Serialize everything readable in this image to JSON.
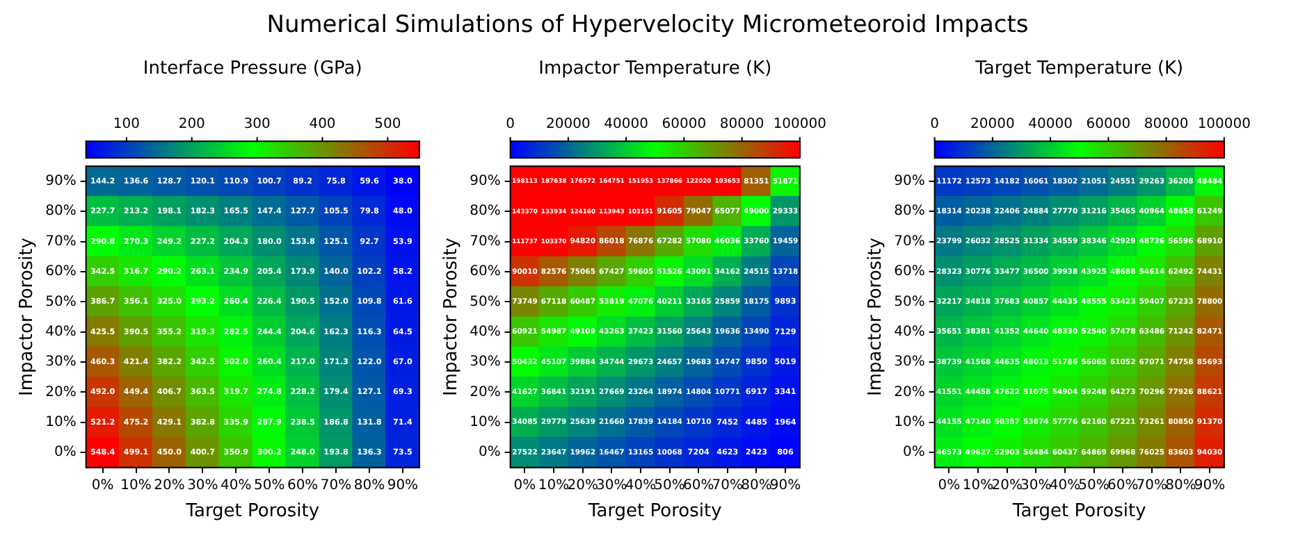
{
  "chart_data": [
    {
      "type": "heatmap",
      "clabel": "Interface Pressure (GPa)",
      "xlabel": "Target Porosity",
      "ylabel": "Impactor Porosity",
      "categories": [
        "0%",
        "10%",
        "20%",
        "30%",
        "40%",
        "50%",
        "60%",
        "70%",
        "80%",
        "90%"
      ],
      "y_categories": [
        "90%",
        "80%",
        "70%",
        "60%",
        "50%",
        "40%",
        "30%",
        "20%",
        "10%",
        "0%"
      ],
      "cells": [
        [
          144.2,
          136.6,
          128.7,
          120.1,
          110.9,
          100.7,
          89.2,
          75.8,
          59.6,
          38.0
        ],
        [
          227.7,
          213.2,
          198.1,
          182.3,
          165.5,
          147.4,
          127.7,
          105.5,
          79.8,
          48.0
        ],
        [
          290.8,
          270.3,
          249.2,
          227.2,
          204.3,
          180.0,
          153.8,
          125.1,
          92.7,
          53.9
        ],
        [
          342.5,
          316.7,
          290.2,
          263.1,
          234.9,
          205.4,
          173.9,
          140.0,
          102.2,
          58.2
        ],
        [
          386.7,
          356.1,
          325.0,
          293.2,
          260.4,
          226.4,
          190.5,
          152.0,
          109.8,
          61.6
        ],
        [
          425.5,
          390.5,
          355.2,
          319.3,
          282.5,
          244.4,
          204.6,
          162.3,
          116.3,
          64.5
        ],
        [
          460.3,
          421.4,
          382.2,
          342.5,
          302.0,
          260.4,
          217.0,
          171.3,
          122.0,
          67.0
        ],
        [
          492.0,
          449.4,
          406.7,
          363.5,
          319.7,
          274.8,
          228.2,
          179.4,
          127.1,
          69.3
        ],
        [
          521.2,
          475.2,
          429.1,
          382.8,
          335.9,
          287.9,
          238.5,
          186.8,
          131.8,
          71.4
        ],
        [
          548.4,
          499.1,
          450.0,
          400.7,
          350.9,
          300.2,
          248.0,
          193.8,
          136.3,
          73.5
        ]
      ],
      "cell_labels": [
        [
          "144.2",
          "136.6",
          "128.7",
          "120.1",
          "110.9",
          "100.7",
          "89.2",
          "75.8",
          "59.6",
          "38.0"
        ],
        [
          "227.7",
          "213.2",
          "198.1",
          "182.3",
          "165.5",
          "147.4",
          "127.7",
          "105.5",
          "79.8",
          "48.0"
        ],
        [
          "290.8",
          "270.3",
          "249.2",
          "227.2",
          "204.3",
          "180.0",
          "153.8",
          "125.1",
          "92.7",
          "53.9"
        ],
        [
          "342.5",
          "316.7",
          "290.2",
          "263.1",
          "234.9",
          "205.4",
          "173.9",
          "140.0",
          "102.2",
          "58.2"
        ],
        [
          "386.7",
          "356.1",
          "325.0",
          "293.2",
          "260.4",
          "226.4",
          "190.5",
          "152.0",
          "109.8",
          "61.6"
        ],
        [
          "425.5",
          "390.5",
          "355.2",
          "319.3",
          "282.5",
          "244.4",
          "204.6",
          "162.3",
          "116.3",
          "64.5"
        ],
        [
          "460.3",
          "421.4",
          "382.2",
          "342.5",
          "302.0",
          "260.4",
          "217.0",
          "171.3",
          "122.0",
          "67.0"
        ],
        [
          "492.0",
          "449.4",
          "406.7",
          "363.5",
          "319.7",
          "274.8",
          "228.2",
          "179.4",
          "127.1",
          "69.3"
        ],
        [
          "521.2",
          "475.2",
          "429.1",
          "382.8",
          "335.9",
          "287.9",
          "238.5",
          "186.8",
          "131.8",
          "71.4"
        ],
        [
          "548.4",
          "499.1",
          "450.0",
          "400.7",
          "350.9",
          "300.2",
          "248.0",
          "193.8",
          "136.3",
          "73.5"
        ]
      ],
      "clim": [
        38.0,
        548.4
      ],
      "cticks": [
        100,
        200,
        300,
        400,
        500
      ]
    },
    {
      "type": "heatmap",
      "title": "Numerical Simulations of Hypervelocity Micrometeoroid Impacts",
      "clabel": "Impactor Temperature (K)",
      "xlabel": "Target Porosity",
      "ylabel": "Impactor Porosity",
      "categories": [
        "0%",
        "10%",
        "20%",
        "30%",
        "40%",
        "50%",
        "60%",
        "70%",
        "80%",
        "90%"
      ],
      "y_categories": [
        "90%",
        "80%",
        "70%",
        "60%",
        "50%",
        "40%",
        "30%",
        "20%",
        "10%",
        "0%"
      ],
      "cells": [
        [
          198113,
          187638,
          176572,
          164751,
          151953,
          137866,
          122020,
          103653,
          81351,
          51871
        ],
        [
          143370,
          133934,
          124160,
          113943,
          103151,
          91605,
          79047,
          65077,
          49000,
          29333
        ],
        [
          111737,
          103370,
          94820,
          86018,
          76876,
          67282,
          57080,
          46036,
          33760,
          19459
        ],
        [
          90010,
          82576,
          75065,
          67427,
          59605,
          51526,
          43091,
          34162,
          24515,
          13718
        ],
        [
          73749,
          67118,
          60487,
          53819,
          47076,
          40211,
          33165,
          25859,
          18175,
          9893
        ],
        [
          60921,
          54987,
          49109,
          43263,
          37423,
          31560,
          25643,
          19636,
          13490,
          7129
        ],
        [
          50432,
          45107,
          39884,
          34744,
          29673,
          24657,
          19683,
          14747,
          9850,
          5019
        ],
        [
          41627,
          36841,
          32191,
          27669,
          23264,
          18974,
          14804,
          10771,
          6917,
          3341
        ],
        [
          34085,
          29779,
          25639,
          21660,
          17839,
          14184,
          10710,
          7452,
          4485,
          1964
        ],
        [
          27522,
          23647,
          19962,
          16467,
          13165,
          10068,
          7204,
          4623,
          2423,
          806
        ]
      ],
      "data_labels": true,
      "clim": [
        0,
        100000
      ],
      "cticks": [
        0,
        20000,
        40000,
        60000,
        80000,
        100000
      ]
    },
    {
      "type": "heatmap",
      "clabel": "Target Temperature (K)",
      "xlabel": "Target Porosity",
      "ylabel": "Impactor Porosity",
      "categories": [
        "0%",
        "10%",
        "20%",
        "30%",
        "40%",
        "50%",
        "60%",
        "70%",
        "80%",
        "90%"
      ],
      "y_categories": [
        "90%",
        "80%",
        "70%",
        "60%",
        "50%",
        "40%",
        "30%",
        "20%",
        "10%",
        "0%"
      ],
      "cells": [
        [
          11172,
          12573,
          14182,
          16061,
          18302,
          21051,
          24551,
          29263,
          36208,
          48484
        ],
        [
          18314,
          20238,
          22406,
          24884,
          27770,
          31216,
          35465,
          40964,
          48658,
          61249
        ],
        [
          23799,
          26032,
          28525,
          31334,
          34559,
          38346,
          42929,
          48726,
          56596,
          68910
        ],
        [
          28323,
          30776,
          33477,
          36500,
          39938,
          43925,
          48688,
          54614,
          62492,
          74431
        ],
        [
          32217,
          34818,
          37683,
          40857,
          44435,
          48555,
          53423,
          59407,
          67233,
          78800
        ],
        [
          35651,
          38381,
          41352,
          44640,
          48330,
          52540,
          57478,
          63486,
          71242,
          82471
        ],
        [
          38739,
          41568,
          44635,
          48013,
          51786,
          56065,
          61052,
          67071,
          74758,
          85693
        ],
        [
          41551,
          44458,
          47622,
          51075,
          54904,
          59248,
          64273,
          70296,
          77926,
          88621
        ],
        [
          44155,
          47140,
          50357,
          53874,
          57776,
          62160,
          67221,
          73261,
          80850,
          91370
        ],
        [
          46573,
          49627,
          52903,
          56484,
          60437,
          64869,
          69968,
          76025,
          83603,
          94030
        ]
      ],
      "data_labels": true,
      "clim": [
        0,
        100000
      ],
      "cticks": [
        0,
        20000,
        40000,
        60000,
        80000,
        100000
      ]
    }
  ]
}
